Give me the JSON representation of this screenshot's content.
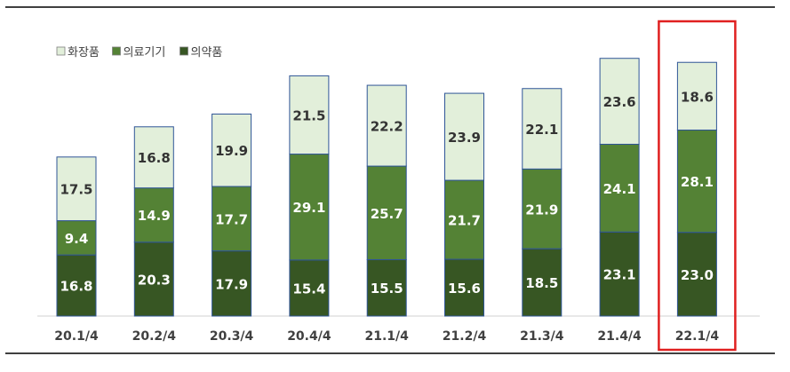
{
  "chart_data": {
    "type": "bar",
    "stacked": true,
    "categories": [
      "20.1/4",
      "20.2/4",
      "20.3/4",
      "20.4/4",
      "21.1/4",
      "21.2/4",
      "21.3/4",
      "21.4/4",
      "22.1/4"
    ],
    "series": [
      {
        "name": "의약품",
        "color": "#375623",
        "values": [
          16.8,
          20.3,
          17.9,
          15.4,
          15.5,
          15.6,
          18.5,
          23.1,
          23.0
        ]
      },
      {
        "name": "의료기기",
        "color": "#548235",
        "values": [
          9.4,
          14.9,
          17.7,
          29.1,
          25.7,
          21.7,
          21.9,
          24.1,
          28.1
        ]
      },
      {
        "name": "화장품",
        "color": "#e2efda",
        "values": [
          17.5,
          16.8,
          19.9,
          21.5,
          22.2,
          23.9,
          22.1,
          23.6,
          18.6
        ]
      }
    ],
    "legend_order": [
      "화장품",
      "의료기기",
      "의약품"
    ],
    "legend_position": "top-left",
    "highlight_category": "22.1/4",
    "highlight_color": "#e02020",
    "bar_outline_color": "#2f5597",
    "label_color_dark": "#ffffff",
    "label_color_light": "#333333",
    "ylim": [
      0,
      75
    ],
    "grid": false
  }
}
